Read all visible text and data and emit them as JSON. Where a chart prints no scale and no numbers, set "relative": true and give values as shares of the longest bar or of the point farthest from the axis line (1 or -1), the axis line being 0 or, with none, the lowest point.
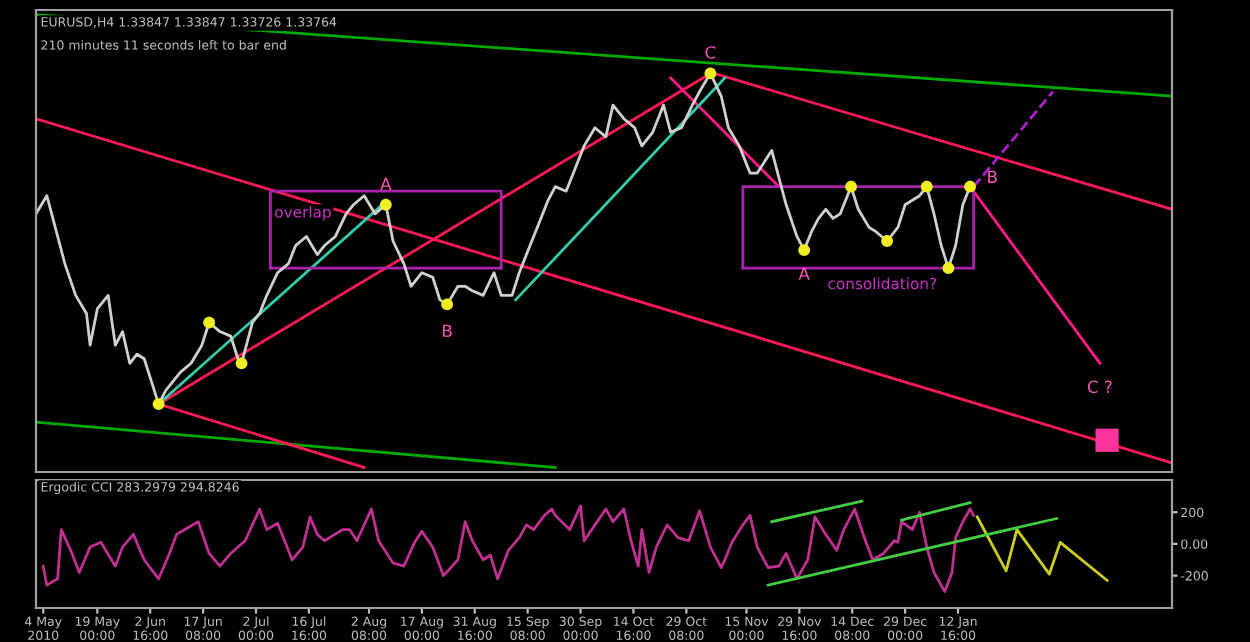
{
  "chart_data": [
    {
      "type": "line",
      "relative": true,
      "xlim": [
        "2010-05-02",
        "2011-03-13"
      ],
      "legend": false,
      "grid": false,
      "annotations": [
        "EURUSD,H4 1.33847 1.33847 1.33726 1.33764",
        "210 minutes 11 seconds left to bar end",
        "overlap",
        "consolidation?",
        {
          "text": "A",
          "x": "2010-08-07",
          "y": 0.58
        },
        {
          "text": "B",
          "x": "2010-08-24",
          "y": 0.36
        },
        {
          "text": "C",
          "x": "2010-11-05",
          "y": 0.87
        },
        {
          "text": "A",
          "x": "2010-12-01",
          "y": 0.48
        },
        {
          "text": "B",
          "x": "2011-01-16",
          "y": 0.62
        },
        {
          "text": "C ?",
          "x": "2011-02-21",
          "y": 0.23
        }
      ],
      "series": [
        {
          "type": "line",
          "color": "#00aa00",
          "x": [
            "2010-05-02",
            "2011-03-13"
          ],
          "values": [
            1.0,
            0.82
          ]
        },
        {
          "type": "line",
          "color": "#00aa00",
          "x": [
            "2010-05-02",
            "2010-09-23"
          ],
          "values": [
            0.1,
            0.0
          ]
        },
        {
          "type": "line",
          "color": "#ff1a55",
          "x": [
            "2010-05-02",
            "2011-03-13"
          ],
          "values": [
            0.77,
            0.01
          ]
        },
        {
          "type": "line",
          "color": "#ff1a55",
          "x": [
            "2010-11-06",
            "2011-03-13"
          ],
          "values": [
            0.87,
            0.57
          ]
        },
        {
          "type": "line",
          "color": "#ff1a55",
          "x": [
            "2010-06-05",
            "2010-11-05"
          ],
          "values": [
            0.14,
            0.87
          ]
        },
        {
          "type": "line",
          "color": "#ff1a55",
          "x": [
            "2010-06-05",
            "2010-08-01"
          ],
          "values": [
            0.14,
            0.0
          ]
        },
        {
          "type": "line",
          "color": "#ff1a88",
          "x": [
            "2010-10-25",
            "2010-11-24"
          ],
          "values": [
            0.86,
            0.62
          ]
        },
        {
          "type": "line",
          "color": "#ff1a88",
          "x": [
            "2011-01-16",
            "2011-02-21"
          ],
          "values": [
            0.62,
            0.23
          ]
        },
        {
          "type": "line",
          "color": "#33ccaa",
          "x": [
            "2010-06-05",
            "2010-08-06"
          ],
          "values": [
            0.14,
            0.58
          ]
        },
        {
          "type": "line",
          "color": "#33ccaa",
          "x": [
            "2010-09-12",
            "2010-11-09"
          ],
          "values": [
            0.37,
            0.86
          ]
        },
        {
          "type": "line",
          "color": "#aa22cc",
          "line_style": "dashed",
          "x": [
            "2011-01-17",
            "2011-02-08"
          ],
          "values": [
            0.62,
            0.83
          ]
        },
        {
          "type": "line",
          "color": "#aa22aa",
          "x": [
            "2010-07-06",
            "2010-07-06",
            "2010-09-08",
            "2010-09-08"
          ],
          "values": [
            0.44,
            0.61,
            0.61,
            0.44
          ]
        },
        {
          "type": "line",
          "color": "#aa22aa",
          "x": [
            "2010-07-06",
            "2010-09-08"
          ],
          "values": [
            0.44,
            0.44
          ]
        },
        {
          "type": "line",
          "color": "#aa22aa",
          "x": [
            "2010-11-14",
            "2010-11-14",
            "2011-01-17",
            "2011-01-17"
          ],
          "values": [
            0.44,
            0.62,
            0.62,
            0.44
          ]
        },
        {
          "type": "line",
          "color": "#aa22aa",
          "x": [
            "2010-11-14",
            "2011-01-17"
          ],
          "values": [
            0.44,
            0.44
          ]
        },
        {
          "type": "line",
          "color": "#d0d0d0",
          "x": [
            "2010-05-02",
            "2010-05-05",
            "2010-05-08",
            "2010-05-10",
            "2010-05-13",
            "2010-05-16",
            "2010-05-17",
            "2010-05-19",
            "2010-05-22",
            "2010-05-24",
            "2010-05-26",
            "2010-05-28",
            "2010-05-30",
            "2010-06-01",
            "2010-06-03",
            "2010-06-05",
            "2010-06-07",
            "2010-06-09",
            "2010-06-11",
            "2010-06-14",
            "2010-06-17",
            "2010-06-19",
            "2010-06-22",
            "2010-06-25",
            "2010-06-27",
            "2010-06-28",
            "2010-07-01",
            "2010-07-03",
            "2010-07-05",
            "2010-07-08",
            "2010-07-11",
            "2010-07-13",
            "2010-07-16",
            "2010-07-19",
            "2010-07-21",
            "2010-07-24",
            "2010-07-27",
            "2010-07-29",
            "2010-08-01",
            "2010-08-04",
            "2010-08-07",
            "2010-08-09",
            "2010-08-12",
            "2010-08-14",
            "2010-08-17",
            "2010-08-20",
            "2010-08-22",
            "2010-08-24",
            "2010-08-27",
            "2010-08-29",
            "2010-08-31",
            "2010-09-03",
            "2010-09-06",
            "2010-09-08",
            "2010-09-11",
            "2010-09-13",
            "2010-09-15",
            "2010-09-18",
            "2010-09-21",
            "2010-09-23",
            "2010-09-26",
            "2010-09-29",
            "2010-10-01",
            "2010-10-04",
            "2010-10-07",
            "2010-10-09",
            "2010-10-12",
            "2010-10-15",
            "2010-10-17",
            "2010-10-20",
            "2010-10-23",
            "2010-10-25",
            "2010-10-28",
            "2010-10-31",
            "2010-11-02",
            "2010-11-05",
            "2010-11-08",
            "2010-11-10",
            "2010-11-13",
            "2010-11-16",
            "2010-11-18",
            "2010-11-22",
            "2010-11-24",
            "2010-11-26",
            "2010-11-29",
            "2010-12-01",
            "2010-12-03",
            "2010-12-05",
            "2010-12-07",
            "2010-12-09",
            "2010-12-11",
            "2010-12-14",
            "2010-12-16",
            "2010-12-19",
            "2010-12-21",
            "2010-12-24",
            "2010-12-27",
            "2010-12-29",
            "2011-01-02",
            "2011-01-04",
            "2011-01-06",
            "2011-01-08",
            "2011-01-10",
            "2011-01-12",
            "2011-01-14",
            "2011-01-16"
          ],
          "values": [
            0.56,
            0.6,
            0.51,
            0.45,
            0.38,
            0.34,
            0.27,
            0.35,
            0.38,
            0.27,
            0.3,
            0.23,
            0.25,
            0.24,
            0.19,
            0.14,
            0.17,
            0.19,
            0.21,
            0.23,
            0.27,
            0.32,
            0.3,
            0.29,
            0.24,
            0.23,
            0.32,
            0.34,
            0.38,
            0.43,
            0.45,
            0.49,
            0.51,
            0.47,
            0.49,
            0.51,
            0.56,
            0.58,
            0.6,
            0.56,
            0.58,
            0.5,
            0.45,
            0.4,
            0.43,
            0.42,
            0.37,
            0.36,
            0.4,
            0.4,
            0.39,
            0.38,
            0.43,
            0.38,
            0.38,
            0.43,
            0.47,
            0.53,
            0.59,
            0.62,
            0.61,
            0.67,
            0.71,
            0.75,
            0.73,
            0.8,
            0.77,
            0.75,
            0.71,
            0.74,
            0.8,
            0.74,
            0.75,
            0.8,
            0.83,
            0.87,
            0.82,
            0.75,
            0.71,
            0.65,
            0.65,
            0.7,
            0.64,
            0.58,
            0.51,
            0.48,
            0.52,
            0.55,
            0.57,
            0.55,
            0.56,
            0.62,
            0.57,
            0.53,
            0.52,
            0.5,
            0.53,
            0.58,
            0.6,
            0.62,
            0.56,
            0.49,
            0.44,
            0.49,
            0.58,
            0.62
          ]
        },
        {
          "type": "scatter",
          "color": "#eeee22",
          "marker": "circle",
          "x": [
            "2010-06-05",
            "2010-06-19",
            "2010-06-28",
            "2010-08-07",
            "2010-08-24",
            "2010-11-05",
            "2010-12-01",
            "2010-12-14",
            "2010-12-24",
            "2011-01-04",
            "2011-01-10",
            "2011-01-16"
          ],
          "values": [
            0.14,
            0.32,
            0.23,
            0.58,
            0.36,
            0.87,
            0.48,
            0.62,
            0.5,
            0.62,
            0.44,
            0.62
          ]
        },
        {
          "type": "scatter",
          "color": "#ff3399",
          "marker": "square",
          "x": [
            "2011-02-23"
          ],
          "values": [
            0.06
          ]
        }
      ]
    },
    {
      "type": "line",
      "xlim": [
        "2010-05-02",
        "2011-03-13"
      ],
      "ylim": [
        -404,
        403
      ],
      "yticks": [
        200,
        {
          "value": 0,
          "label": "0.00"
        },
        -200
      ],
      "legend": false,
      "grid": false,
      "xticks": [
        {
          "value": "2010-05-04",
          "label": "4 May 2010"
        },
        {
          "value": "2010-05-19",
          "label": "19 May 00:00"
        },
        {
          "value": "2010-06-02T16:00",
          "label": "2 Jun 16:00"
        },
        {
          "value": "2010-06-17T08:00",
          "label": "17 Jun 08:00"
        },
        {
          "value": "2010-07-02",
          "label": "2 Jul 00:00"
        },
        {
          "value": "2010-07-16T16:00",
          "label": "16 Jul 16:00"
        },
        {
          "value": "2010-08-02T08:00",
          "label": "2 Aug 08:00"
        },
        {
          "value": "2010-08-17",
          "label": "17 Aug 00:00"
        },
        {
          "value": "2010-08-31T16:00",
          "label": "31 Aug 16:00"
        },
        {
          "value": "2010-09-15T08:00",
          "label": "15 Sep 08:00"
        },
        {
          "value": "2010-09-30",
          "label": "30 Sep 00:00"
        },
        {
          "value": "2010-10-14T16:00",
          "label": "14 Oct 16:00"
        },
        {
          "value": "2010-10-29T08:00",
          "label": "29 Oct 08:00"
        },
        {
          "value": "2010-11-15",
          "label": "15 Nov 00:00"
        },
        {
          "value": "2010-11-29T16:00",
          "label": "29 Nov 16:00"
        },
        {
          "value": "2010-12-14T08:00",
          "label": "14 Dec 08:00"
        },
        {
          "value": "2010-12-29",
          "label": "29 Dec 00:00"
        },
        {
          "value": "2011-01-12T16:00",
          "label": "12 Jan 16:00"
        }
      ],
      "annotations": [
        "Ergodic CCI 283.2979 294.8246"
      ],
      "series": [
        {
          "type": "line",
          "color": "#c03090",
          "x": [
            "2010-05-04",
            "2010-05-05",
            "2010-05-08",
            "2010-05-09",
            "2010-05-12",
            "2010-05-14",
            "2010-05-17",
            "2010-05-20",
            "2010-05-24",
            "2010-05-26",
            "2010-05-29",
            "2010-06-01",
            "2010-06-05",
            "2010-06-08",
            "2010-06-10",
            "2010-06-13",
            "2010-06-16",
            "2010-06-19",
            "2010-06-22",
            "2010-06-25",
            "2010-06-29",
            "2010-07-03",
            "2010-07-05",
            "2010-07-08",
            "2010-07-12",
            "2010-07-15",
            "2010-07-17",
            "2010-07-19",
            "2010-07-21",
            "2010-07-26",
            "2010-07-28",
            "2010-07-30",
            "2010-08-03",
            "2010-08-05",
            "2010-08-09",
            "2010-08-12",
            "2010-08-15",
            "2010-08-17",
            "2010-08-20",
            "2010-08-23",
            "2010-08-27",
            "2010-08-29",
            "2010-08-31",
            "2010-09-03",
            "2010-09-05",
            "2010-09-07",
            "2010-09-10",
            "2010-09-13",
            "2010-09-15",
            "2010-09-17",
            "2010-09-20",
            "2010-09-22",
            "2010-09-23",
            "2010-09-27",
            "2010-09-30",
            "2010-10-01",
            "2010-10-04",
            "2010-10-07",
            "2010-10-09",
            "2010-10-12",
            "2010-10-14",
            "2010-10-16",
            "2010-10-17",
            "2010-10-19",
            "2010-10-21",
            "2010-10-24",
            "2010-10-27",
            "2010-10-30",
            "2010-11-02",
            "2010-11-05",
            "2010-11-08",
            "2010-11-09",
            "2010-11-11",
            "2010-11-14",
            "2010-11-16",
            "2010-11-18",
            "2010-11-21",
            "2010-11-24",
            "2010-11-26",
            "2010-11-29",
            "2010-12-02",
            "2010-12-04",
            "2010-12-07",
            "2010-12-10",
            "2010-12-12",
            "2010-12-15",
            "2010-12-18",
            "2010-12-20",
            "2010-12-23",
            "2010-12-26",
            "2010-12-27",
            "2010-12-28",
            "2010-12-31",
            "2011-01-02",
            "2011-01-04",
            "2011-01-06",
            "2011-01-08",
            "2011-01-09",
            "2011-01-11",
            "2011-01-12",
            "2011-01-14",
            "2011-01-16",
            "2011-01-17"
          ],
          "values": [
            -140,
            -260,
            -220,
            90,
            -60,
            -180,
            -20,
            10,
            -140,
            -20,
            60,
            -100,
            -220,
            -60,
            60,
            100,
            140,
            -60,
            -140,
            -60,
            20,
            220,
            90,
            130,
            -100,
            -20,
            170,
            60,
            20,
            90,
            90,
            20,
            220,
            20,
            -120,
            -140,
            10,
            80,
            -20,
            -200,
            -100,
            140,
            20,
            -100,
            -70,
            -220,
            -40,
            40,
            120,
            90,
            180,
            220,
            180,
            90,
            240,
            20,
            120,
            220,
            140,
            220,
            20,
            -140,
            90,
            -180,
            -20,
            120,
            40,
            20,
            210,
            -20,
            -150,
            -100,
            10,
            120,
            180,
            -20,
            -150,
            -140,
            -60,
            -220,
            -100,
            170,
            60,
            -40,
            90,
            220,
            20,
            -100,
            -60,
            20,
            10,
            140,
            90,
            200,
            -20,
            -180,
            -260,
            -300,
            -180,
            40,
            140,
            220,
            180
          ]
        },
        {
          "type": "line",
          "color": "#cccc22",
          "x": [
            "2011-01-18",
            "2011-01-26",
            "2011-01-29",
            "2011-02-07",
            "2011-02-10",
            "2011-02-23"
          ],
          "values": [
            170,
            -170,
            90,
            -190,
            10,
            -230
          ]
        },
        {
          "type": "line",
          "color": "#44cc44",
          "x": [
            "2010-11-22",
            "2010-12-17"
          ],
          "values": [
            140,
            270
          ]
        },
        {
          "type": "line",
          "color": "#44cc44",
          "x": [
            "2010-11-21",
            "2011-02-09"
          ],
          "values": [
            -260,
            160
          ]
        },
        {
          "type": "line",
          "color": "#44cc44",
          "x": [
            "2010-12-28",
            "2011-01-16"
          ],
          "values": [
            150,
            260
          ]
        }
      ]
    }
  ]
}
